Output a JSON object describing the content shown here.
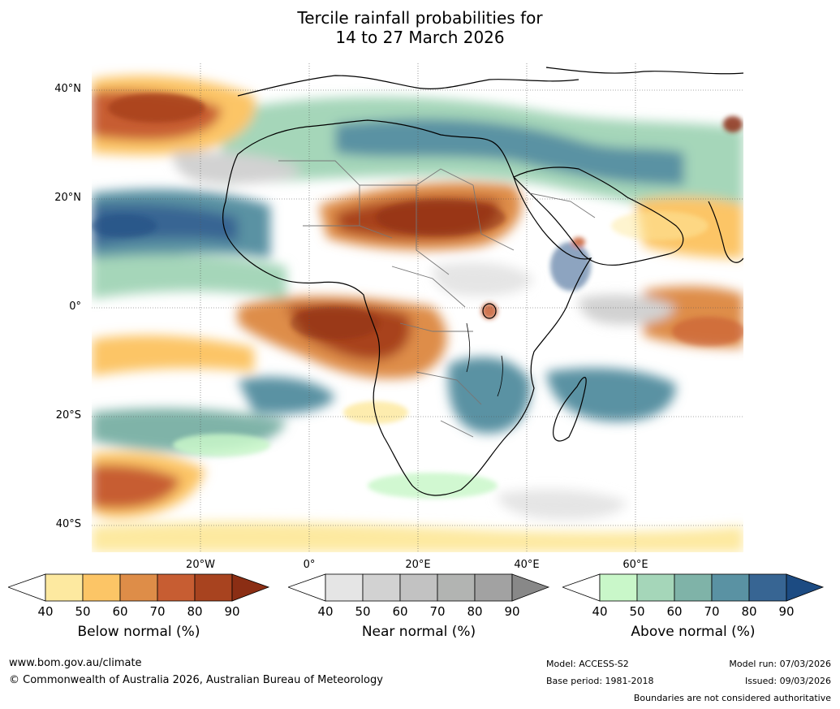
{
  "title": {
    "line1": "Tercile rainfall probabilities for",
    "line2": "14 to 27 March 2026"
  },
  "map": {
    "lat_labels": [
      "40°N",
      "20°N",
      "0°",
      "20°S",
      "40°S"
    ],
    "lon_labels": [
      "20°W",
      "0°",
      "20°E",
      "40°E",
      "60°E"
    ]
  },
  "legend": {
    "below": {
      "title": "Below normal (%)",
      "ticks": [
        "40",
        "50",
        "60",
        "70",
        "80",
        "90"
      ],
      "colors": [
        "#ffffff",
        "#fde9a0",
        "#fcc566",
        "#de8d48",
        "#c75d32",
        "#a8431f",
        "#8b2e14"
      ]
    },
    "near": {
      "title": "Near normal (%)",
      "ticks": [
        "40",
        "50",
        "60",
        "70",
        "80",
        "90"
      ],
      "colors": [
        "#ffffff",
        "#e5e5e5",
        "#d2d2d2",
        "#c2c2c2",
        "#b2b4b2",
        "#a2a2a2",
        "#888888"
      ]
    },
    "above": {
      "title": "Above normal (%)",
      "ticks": [
        "40",
        "50",
        "60",
        "70",
        "80",
        "90"
      ],
      "colors": [
        "#ffffff",
        "#c9f7c9",
        "#a5d6b9",
        "#7fb3a8",
        "#5a92a3",
        "#376593",
        "#1c4b82"
      ]
    }
  },
  "footer": {
    "website": "www.bom.gov.au/climate",
    "copyright": "© Commonwealth of Australia 2026, Australian Bureau of Meteorology",
    "model": "Model: ACCESS-S2",
    "base_period": "Base period: 1981-2018",
    "model_run": "Model run: 07/03/2026",
    "issued": "Issued: 09/03/2026",
    "disclaimer": "Boundaries are not considered authoritative"
  }
}
